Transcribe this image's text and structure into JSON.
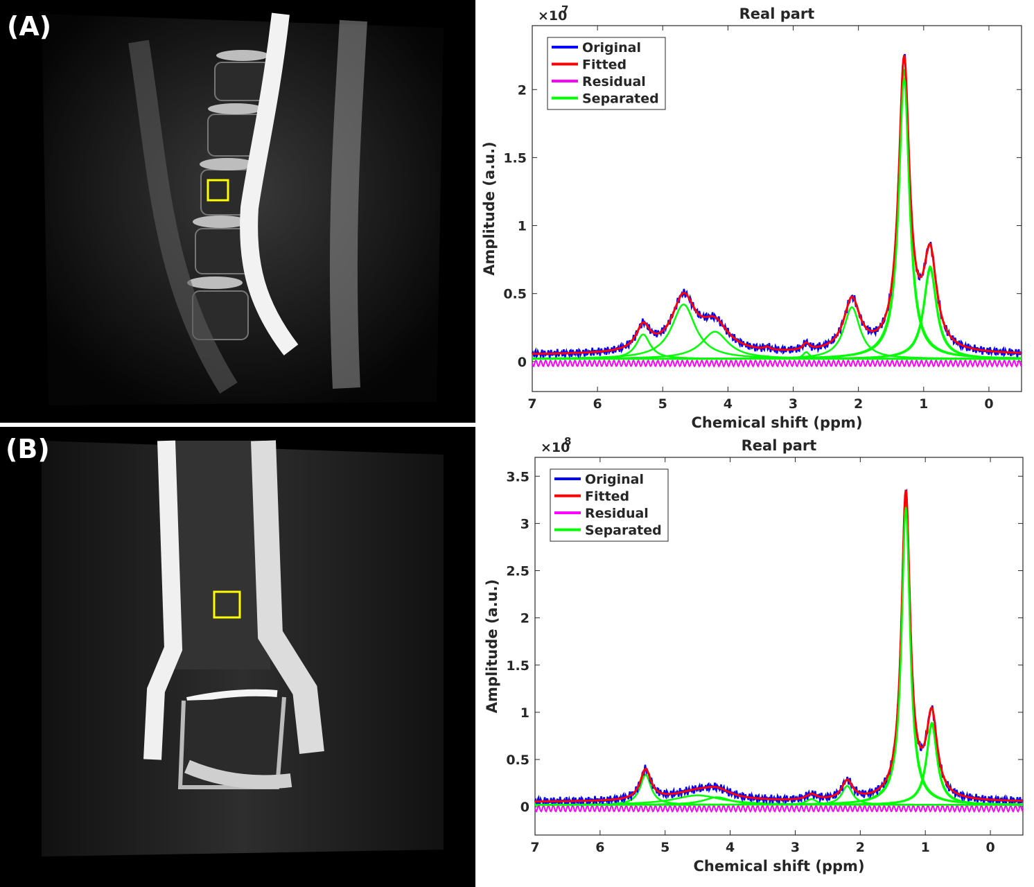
{
  "panels": [
    {
      "label": "(A)",
      "image_desc": "sagittal lumbar spine MRI",
      "roi_color": "#ffff00"
    },
    {
      "label": "(B)",
      "image_desc": "coronal ankle MRI",
      "roi_color": "#ffff00"
    }
  ],
  "chart_data": [
    {
      "type": "line",
      "title": "Real part",
      "xlabel": "Chemical shift (ppm)",
      "ylabel": "Amplitude (a.u.)",
      "exponent": "×10",
      "exponent_power": "7",
      "xlim": [
        7,
        -0.5
      ],
      "ylim": [
        -0.22,
        2.47
      ],
      "xticks": [
        7,
        6,
        5,
        4,
        3,
        2,
        1,
        0
      ],
      "yticks": [
        0,
        0.5,
        1,
        1.5,
        2
      ],
      "ytick_labels": [
        "0",
        "0.5",
        "1",
        "1.5",
        "2"
      ],
      "baseline": 0.05,
      "legend": "top-left",
      "series": [
        {
          "name": "Original",
          "color": "#0000ff"
        },
        {
          "name": "Fitted",
          "color": "#ff0000"
        },
        {
          "name": "Residual",
          "color": "#ff00ff"
        },
        {
          "name": "Separated",
          "color": "#00ff00"
        }
      ],
      "peaks": [
        {
          "ppm": 5.3,
          "height": 0.18,
          "width": 0.13
        },
        {
          "ppm": 4.68,
          "height": 0.4,
          "width": 0.22
        },
        {
          "ppm": 4.2,
          "height": 0.2,
          "width": 0.25
        },
        {
          "ppm": 3.4,
          "height": 0.02,
          "width": 0.05
        },
        {
          "ppm": 2.8,
          "height": 0.05,
          "width": 0.06
        },
        {
          "ppm": 2.1,
          "height": 0.38,
          "width": 0.15
        },
        {
          "ppm": 1.3,
          "height": 2.13,
          "width": 0.1
        },
        {
          "ppm": 0.9,
          "height": 0.68,
          "width": 0.12
        }
      ]
    },
    {
      "type": "line",
      "title": "Real part",
      "xlabel": "Chemical shift (ppm)",
      "ylabel": "Amplitude (a.u.)",
      "exponent": "×10",
      "exponent_power": "8",
      "xlim": [
        7,
        -0.5
      ],
      "ylim": [
        -0.3,
        3.7
      ],
      "xticks": [
        7,
        6,
        5,
        4,
        3,
        2,
        1,
        0
      ],
      "yticks": [
        0,
        0.5,
        1,
        1.5,
        2,
        2.5,
        3,
        3.5
      ],
      "ytick_labels": [
        "0",
        "0.5",
        "1",
        "1.5",
        "2",
        "2.5",
        "3",
        "3.5"
      ],
      "baseline": 0.05,
      "legend": "top-left",
      "series": [
        {
          "name": "Original",
          "color": "#0000ff"
        },
        {
          "name": "Fitted",
          "color": "#ff0000"
        },
        {
          "name": "Residual",
          "color": "#ff00ff"
        },
        {
          "name": "Separated",
          "color": "#00ff00"
        }
      ],
      "peaks": [
        {
          "ppm": 5.3,
          "height": 0.32,
          "width": 0.1
        },
        {
          "ppm": 4.5,
          "height": 0.1,
          "width": 0.45
        },
        {
          "ppm": 4.2,
          "height": 0.08,
          "width": 0.25
        },
        {
          "ppm": 2.75,
          "height": 0.06,
          "width": 0.1
        },
        {
          "ppm": 2.2,
          "height": 0.2,
          "width": 0.1
        },
        {
          "ppm": 1.3,
          "height": 3.25,
          "width": 0.08
        },
        {
          "ppm": 0.9,
          "height": 0.87,
          "width": 0.1
        }
      ]
    }
  ]
}
